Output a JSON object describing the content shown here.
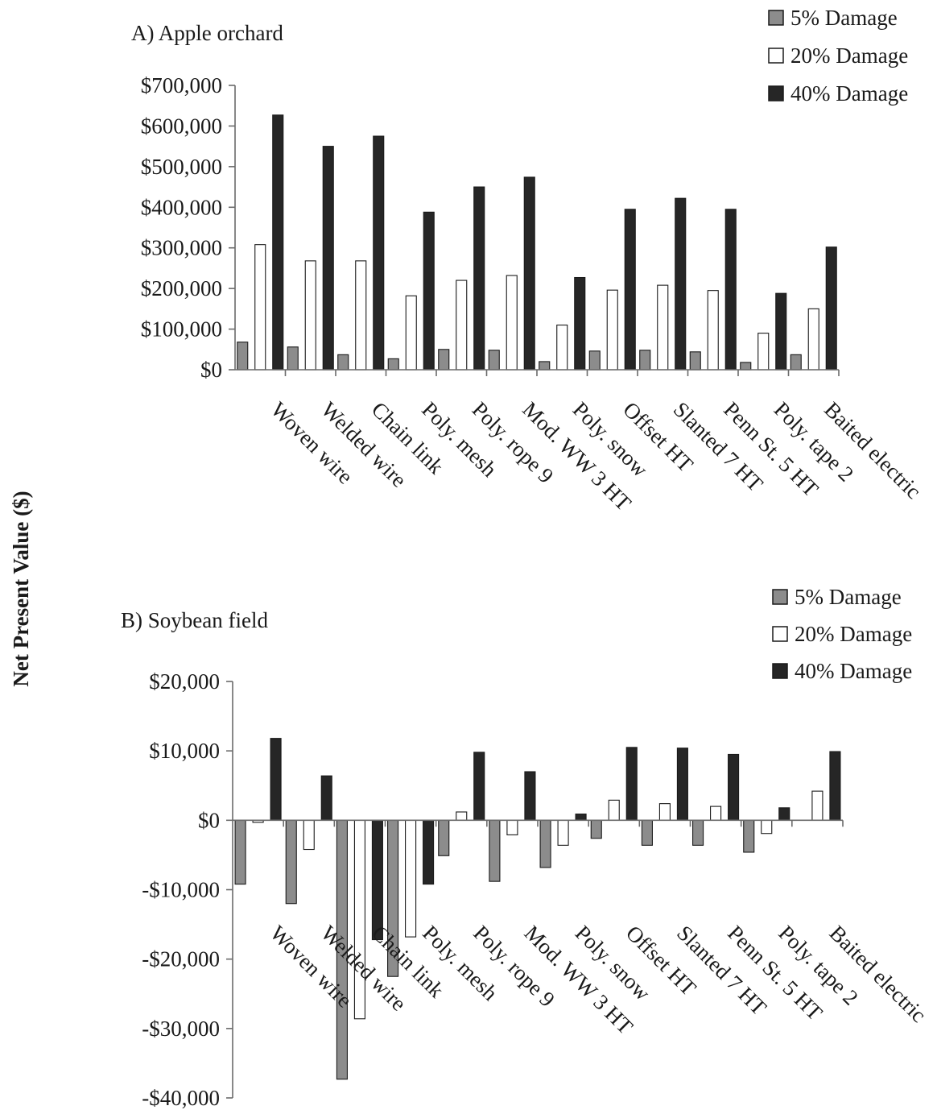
{
  "figure": {
    "ylabel": "Net Present Value ($)"
  },
  "chart_data": [
    {
      "type": "bar",
      "title": "A) Apple orchard",
      "xlabel": "",
      "ylabel": "Net Present Value ($)",
      "ylim": [
        0,
        700000
      ],
      "yticks": [
        0,
        100000,
        200000,
        300000,
        400000,
        500000,
        600000,
        700000
      ],
      "ytick_labels": [
        "$0",
        "$100,000",
        "$200,000",
        "$300,000",
        "$400,000",
        "$500,000",
        "$600,000",
        "$700,000"
      ],
      "categories": [
        "Woven wire",
        "Welded wire",
        "Chain link",
        "Poly. mesh",
        "Poly. rope 9",
        "Mod. WW 3 HT",
        "Poly. snow",
        "Offset HT",
        "Slanted 7 HT",
        "Penn St. 5 HT",
        "Poly. tape 2",
        "Baited electric"
      ],
      "series": [
        {
          "name": "5% Damage",
          "color": "#8c8c8c",
          "values": [
            68000,
            56000,
            37000,
            27000,
            50000,
            48000,
            20000,
            46000,
            48000,
            44000,
            18000,
            37000
          ]
        },
        {
          "name": "20% Damage",
          "color": "#ffffff",
          "values": [
            308000,
            268000,
            268000,
            182000,
            220000,
            232000,
            110000,
            196000,
            208000,
            195000,
            90000,
            150000
          ]
        },
        {
          "name": "40% Damage",
          "color": "#262626",
          "values": [
            627000,
            550000,
            575000,
            388000,
            450000,
            474000,
            227000,
            395000,
            422000,
            395000,
            188000,
            302000
          ]
        }
      ],
      "legend": "top-right",
      "grid": false
    },
    {
      "type": "bar",
      "title": "B) Soybean field",
      "xlabel": "",
      "ylabel": "Net Present Value ($)",
      "ylim": [
        -40000,
        20000
      ],
      "yticks": [
        -40000,
        -30000,
        -20000,
        -10000,
        0,
        10000,
        20000
      ],
      "ytick_labels": [
        "-$40,000",
        "-$30,000",
        "-$20,000",
        "-$10,000",
        "$0",
        "$10,000",
        "$20,000"
      ],
      "categories": [
        "Woven wire",
        "Welded wire",
        "Chain link",
        "Poly. mesh",
        "Poly. rope 9",
        "Mod. WW 3 HT",
        "Poly. snow",
        "Offset HT",
        "Slanted 7 HT",
        "Penn St. 5 HT",
        "Poly. tape 2",
        "Baited electric"
      ],
      "series": [
        {
          "name": "5% Damage",
          "color": "#8c8c8c",
          "values": [
            -9200,
            -12000,
            -37300,
            -22500,
            -5100,
            -8800,
            -6800,
            -2600,
            -3600,
            -3600,
            -4600,
            0
          ]
        },
        {
          "name": "20% Damage",
          "color": "#ffffff",
          "values": [
            -300,
            -4200,
            -28600,
            -16800,
            1200,
            -2100,
            -3600,
            2900,
            2400,
            2000,
            -1900,
            4200
          ]
        },
        {
          "name": "40% Damage",
          "color": "#262626",
          "values": [
            11800,
            6400,
            -17200,
            -9200,
            9800,
            7000,
            900,
            10500,
            10400,
            9500,
            1800,
            9900
          ]
        }
      ],
      "legend": "top-right",
      "grid": false
    }
  ]
}
